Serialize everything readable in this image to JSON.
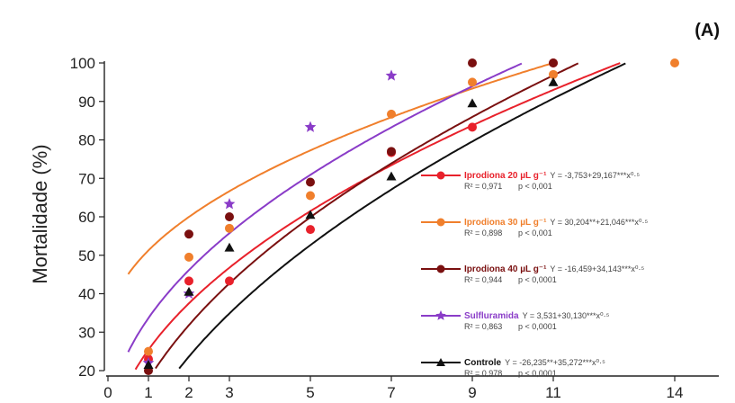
{
  "chart_data": {
    "type": "scatter",
    "panel_label": "(A)",
    "ylabel": "Mortalidade (%)",
    "xlabel": "",
    "xlim": [
      0,
      15
    ],
    "ylim": [
      20,
      100
    ],
    "xticks": [
      0,
      1,
      2,
      3,
      5,
      7,
      9,
      11,
      14
    ],
    "yticks": [
      20,
      30,
      40,
      50,
      60,
      70,
      80,
      90,
      100
    ],
    "grid": false,
    "legend_position": "right",
    "series": [
      {
        "name": "Iprodiona 20 µL g⁻¹",
        "equation": "Y = -3,753+29,167***x⁰·⁵",
        "r2": "R² = 0,971",
        "p": "p < 0,001",
        "color": "#e8212b",
        "marker": "circle",
        "coef": [
          -3.753,
          29.167
        ],
        "points": [
          [
            1,
            23
          ],
          [
            2,
            43.3
          ],
          [
            3,
            43.3
          ],
          [
            5,
            56.7
          ],
          [
            7,
            76.7
          ],
          [
            9,
            83.3
          ],
          [
            11,
            100
          ]
        ]
      },
      {
        "name": "Iprodiona 30 µL g⁻¹",
        "equation": "Y = 30,204**+21,046***x⁰·⁵",
        "r2": "R² = 0,898",
        "p": "p < 0,001",
        "color": "#f07f2c",
        "marker": "circle",
        "coef": [
          30.204,
          21.046
        ],
        "points": [
          [
            1,
            25
          ],
          [
            2,
            49.5
          ],
          [
            3,
            57
          ],
          [
            5,
            65.5
          ],
          [
            7,
            86.7
          ],
          [
            9,
            95
          ],
          [
            11,
            97
          ],
          [
            14,
            100
          ]
        ]
      },
      {
        "name": "Iprodiona 40 µL g⁻¹",
        "equation": "Y = -16,459+34,143***x⁰·⁵",
        "r2": "R² = 0,944",
        "p": "p < 0,0001",
        "color": "#7a1010",
        "marker": "circle",
        "coef": [
          -16.459,
          34.143
        ],
        "points": [
          [
            1,
            20
          ],
          [
            2,
            55.5
          ],
          [
            3,
            60
          ],
          [
            5,
            69
          ],
          [
            7,
            77
          ],
          [
            9,
            100
          ],
          [
            11,
            100
          ]
        ]
      },
      {
        "name": "Sulfluramida",
        "equation": "Y = 3,531+30,130***x⁰·⁵",
        "r2": "R² = 0,863",
        "p": "p < 0,0001",
        "color": "#8a3cc8",
        "marker": "star",
        "coef": [
          3.531,
          30.13
        ],
        "points": [
          [
            1,
            22
          ],
          [
            2,
            40
          ],
          [
            3,
            63.3
          ],
          [
            5,
            83.3
          ],
          [
            7,
            96.7
          ]
        ]
      },
      {
        "name": "Controle",
        "equation": "Y = -26,235**+35,272***x⁰·⁵",
        "r2": "R² = 0,978",
        "p": "p < 0,0001",
        "color": "#111111",
        "marker": "triangle",
        "coef": [
          -26.235,
          35.272
        ],
        "points": [
          [
            1,
            21.5
          ],
          [
            2,
            40.5
          ],
          [
            3,
            52
          ],
          [
            5,
            60.5
          ],
          [
            7,
            70.5
          ],
          [
            9,
            89.5
          ],
          [
            11,
            95
          ]
        ]
      }
    ]
  }
}
